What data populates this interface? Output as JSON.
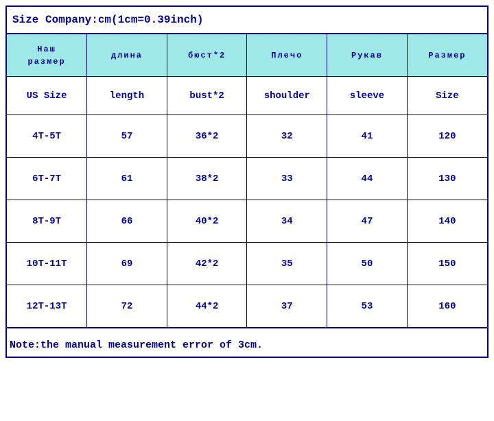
{
  "title": "Size Company:cm(1cm=0.39inch)",
  "headers_ru": [
    "Наш размер",
    "длина",
    "бюст*2",
    "Плечо",
    "Рукав",
    "Размер"
  ],
  "headers_en": [
    "US Size",
    "length",
    "bust*2",
    "shoulder",
    "sleeve",
    "Size"
  ],
  "rows": [
    [
      "4T-5T",
      "57",
      "36*2",
      "32",
      "41",
      "120"
    ],
    [
      "6T-7T",
      "61",
      "38*2",
      "33",
      "44",
      "130"
    ],
    [
      "8T-9T",
      "66",
      "40*2",
      "34",
      "47",
      "140"
    ],
    [
      "10T-11T",
      "69",
      "42*2",
      "35",
      "50",
      "150"
    ],
    [
      "12T-13T",
      "72",
      "44*2",
      "37",
      "53",
      "160"
    ]
  ],
  "footer": "Note:the manual measurement error of 3cm.",
  "colors": {
    "border": "#000080",
    "text": "#000099",
    "header_bg": "#9fe8e8",
    "background": "#ffffff"
  },
  "font_family": "Courier New",
  "column_count": 6
}
